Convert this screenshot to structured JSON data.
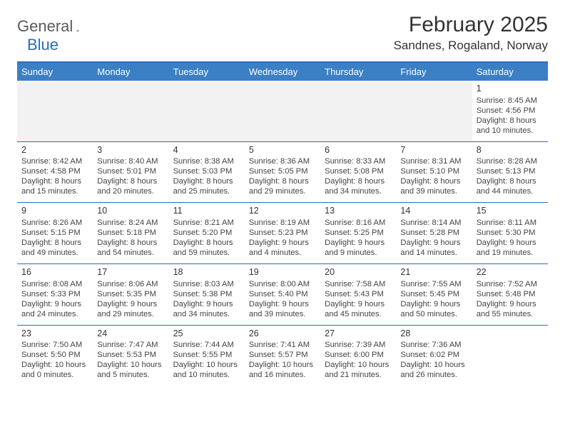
{
  "logo": {
    "gray": "General",
    "blue": "Blue",
    "triangle_color": "#2a6db8"
  },
  "title": "February 2025",
  "location": "Sandnes, Rogaland, Norway",
  "colors": {
    "header_bg": "#3b7fc4",
    "divider": "#2a6db8",
    "empty_bg": "#f2f2f2",
    "text": "#333333"
  },
  "weekdays": [
    "Sunday",
    "Monday",
    "Tuesday",
    "Wednesday",
    "Thursday",
    "Friday",
    "Saturday"
  ],
  "weeks": [
    [
      null,
      null,
      null,
      null,
      null,
      null,
      {
        "n": "1",
        "sr": "Sunrise: 8:45 AM",
        "ss": "Sunset: 4:56 PM",
        "dl": "Daylight: 8 hours and 10 minutes."
      }
    ],
    [
      {
        "n": "2",
        "sr": "Sunrise: 8:42 AM",
        "ss": "Sunset: 4:58 PM",
        "dl": "Daylight: 8 hours and 15 minutes."
      },
      {
        "n": "3",
        "sr": "Sunrise: 8:40 AM",
        "ss": "Sunset: 5:01 PM",
        "dl": "Daylight: 8 hours and 20 minutes."
      },
      {
        "n": "4",
        "sr": "Sunrise: 8:38 AM",
        "ss": "Sunset: 5:03 PM",
        "dl": "Daylight: 8 hours and 25 minutes."
      },
      {
        "n": "5",
        "sr": "Sunrise: 8:36 AM",
        "ss": "Sunset: 5:05 PM",
        "dl": "Daylight: 8 hours and 29 minutes."
      },
      {
        "n": "6",
        "sr": "Sunrise: 8:33 AM",
        "ss": "Sunset: 5:08 PM",
        "dl": "Daylight: 8 hours and 34 minutes."
      },
      {
        "n": "7",
        "sr": "Sunrise: 8:31 AM",
        "ss": "Sunset: 5:10 PM",
        "dl": "Daylight: 8 hours and 39 minutes."
      },
      {
        "n": "8",
        "sr": "Sunrise: 8:28 AM",
        "ss": "Sunset: 5:13 PM",
        "dl": "Daylight: 8 hours and 44 minutes."
      }
    ],
    [
      {
        "n": "9",
        "sr": "Sunrise: 8:26 AM",
        "ss": "Sunset: 5:15 PM",
        "dl": "Daylight: 8 hours and 49 minutes."
      },
      {
        "n": "10",
        "sr": "Sunrise: 8:24 AM",
        "ss": "Sunset: 5:18 PM",
        "dl": "Daylight: 8 hours and 54 minutes."
      },
      {
        "n": "11",
        "sr": "Sunrise: 8:21 AM",
        "ss": "Sunset: 5:20 PM",
        "dl": "Daylight: 8 hours and 59 minutes."
      },
      {
        "n": "12",
        "sr": "Sunrise: 8:19 AM",
        "ss": "Sunset: 5:23 PM",
        "dl": "Daylight: 9 hours and 4 minutes."
      },
      {
        "n": "13",
        "sr": "Sunrise: 8:16 AM",
        "ss": "Sunset: 5:25 PM",
        "dl": "Daylight: 9 hours and 9 minutes."
      },
      {
        "n": "14",
        "sr": "Sunrise: 8:14 AM",
        "ss": "Sunset: 5:28 PM",
        "dl": "Daylight: 9 hours and 14 minutes."
      },
      {
        "n": "15",
        "sr": "Sunrise: 8:11 AM",
        "ss": "Sunset: 5:30 PM",
        "dl": "Daylight: 9 hours and 19 minutes."
      }
    ],
    [
      {
        "n": "16",
        "sr": "Sunrise: 8:08 AM",
        "ss": "Sunset: 5:33 PM",
        "dl": "Daylight: 9 hours and 24 minutes."
      },
      {
        "n": "17",
        "sr": "Sunrise: 8:06 AM",
        "ss": "Sunset: 5:35 PM",
        "dl": "Daylight: 9 hours and 29 minutes."
      },
      {
        "n": "18",
        "sr": "Sunrise: 8:03 AM",
        "ss": "Sunset: 5:38 PM",
        "dl": "Daylight: 9 hours and 34 minutes."
      },
      {
        "n": "19",
        "sr": "Sunrise: 8:00 AM",
        "ss": "Sunset: 5:40 PM",
        "dl": "Daylight: 9 hours and 39 minutes."
      },
      {
        "n": "20",
        "sr": "Sunrise: 7:58 AM",
        "ss": "Sunset: 5:43 PM",
        "dl": "Daylight: 9 hours and 45 minutes."
      },
      {
        "n": "21",
        "sr": "Sunrise: 7:55 AM",
        "ss": "Sunset: 5:45 PM",
        "dl": "Daylight: 9 hours and 50 minutes."
      },
      {
        "n": "22",
        "sr": "Sunrise: 7:52 AM",
        "ss": "Sunset: 5:48 PM",
        "dl": "Daylight: 9 hours and 55 minutes."
      }
    ],
    [
      {
        "n": "23",
        "sr": "Sunrise: 7:50 AM",
        "ss": "Sunset: 5:50 PM",
        "dl": "Daylight: 10 hours and 0 minutes."
      },
      {
        "n": "24",
        "sr": "Sunrise: 7:47 AM",
        "ss": "Sunset: 5:53 PM",
        "dl": "Daylight: 10 hours and 5 minutes."
      },
      {
        "n": "25",
        "sr": "Sunrise: 7:44 AM",
        "ss": "Sunset: 5:55 PM",
        "dl": "Daylight: 10 hours and 10 minutes."
      },
      {
        "n": "26",
        "sr": "Sunrise: 7:41 AM",
        "ss": "Sunset: 5:57 PM",
        "dl": "Daylight: 10 hours and 16 minutes."
      },
      {
        "n": "27",
        "sr": "Sunrise: 7:39 AM",
        "ss": "Sunset: 6:00 PM",
        "dl": "Daylight: 10 hours and 21 minutes."
      },
      {
        "n": "28",
        "sr": "Sunrise: 7:36 AM",
        "ss": "Sunset: 6:02 PM",
        "dl": "Daylight: 10 hours and 26 minutes."
      },
      null
    ]
  ]
}
